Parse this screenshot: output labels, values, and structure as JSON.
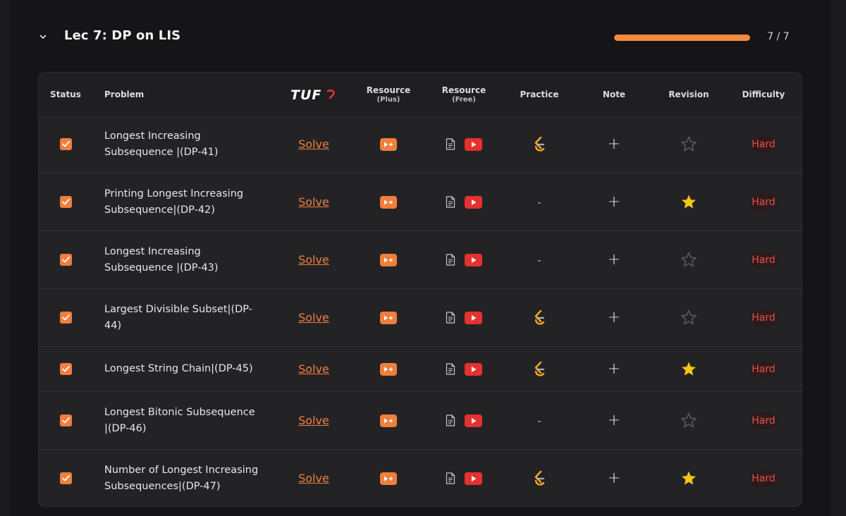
{
  "lecture": {
    "title": "Lec 7: DP on LIS",
    "progress_text": "7 / 7",
    "progress_fraction": 1.0
  },
  "columns": {
    "status": "Status",
    "problem": "Problem",
    "tuf_logo_text": "TUF",
    "resource_plus": "Resource",
    "resource_plus_sub": "(Plus)",
    "resource_free": "Resource",
    "resource_free_sub": "(Free)",
    "practice": "Practice",
    "note": "Note",
    "revision": "Revision",
    "difficulty": "Difficulty"
  },
  "solve_label": "Solve",
  "dash": "-",
  "plus_sign": "+",
  "colors": {
    "accent": "#f07f3c",
    "youtube": "#e5312f",
    "star_filled": "#f5c518",
    "hard": "#e0524a"
  },
  "rows": [
    {
      "status": true,
      "name": "Longest Increasing Subsequence |(DP-41)",
      "practice": "icon",
      "starred": false,
      "difficulty": "Hard"
    },
    {
      "status": true,
      "name": "Printing Longest Increasing Subsequence|(DP-42)",
      "practice": "dash",
      "starred": true,
      "difficulty": "Hard"
    },
    {
      "status": true,
      "name": "Longest Increasing Subsequence |(DP-43)",
      "practice": "dash",
      "starred": false,
      "difficulty": "Hard"
    },
    {
      "status": true,
      "name": "Largest Divisible Subset|(DP-44)",
      "practice": "icon",
      "starred": false,
      "difficulty": "Hard"
    },
    {
      "status": true,
      "name": "Longest String Chain|(DP-45)",
      "practice": "icon",
      "starred": true,
      "difficulty": "Hard"
    },
    {
      "status": true,
      "name": "Longest Bitonic Subsequence |(DP-46)",
      "practice": "dash",
      "starred": false,
      "difficulty": "Hard"
    },
    {
      "status": true,
      "name": "Number of Longest Increasing Subsequences|(DP-47)",
      "practice": "icon",
      "starred": true,
      "difficulty": "Hard"
    }
  ]
}
